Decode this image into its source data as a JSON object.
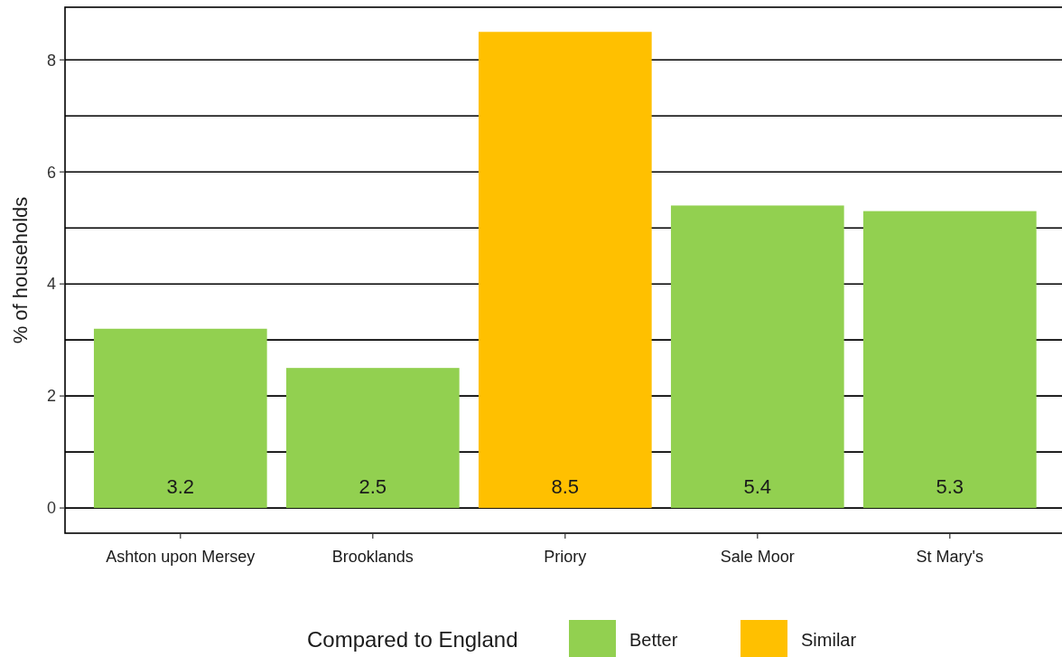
{
  "chart_data": {
    "type": "bar",
    "ylabel": "% of households",
    "categories": [
      "Ashton upon Mersey",
      "Brooklands",
      "Priory",
      "Sale Moor",
      "St Mary's"
    ],
    "series": [
      {
        "name": "Better",
        "color": "#92d050",
        "values": [
          3.2,
          2.5,
          null,
          5.4,
          5.3
        ]
      },
      {
        "name": "Similar",
        "color": "#ffc000",
        "values": [
          null,
          null,
          8.5,
          null,
          null
        ]
      }
    ],
    "stacked": true,
    "data_labels": true,
    "legend": "bottom",
    "legend_title": "Compared to England",
    "grid": "y",
    "ylim": [
      -0.45,
      8.94
    ],
    "yticks": [
      0,
      {
        "value": 1,
        "label": null
      },
      2,
      {
        "value": 3,
        "label": null
      },
      4,
      {
        "value": 5,
        "label": null
      },
      6,
      {
        "value": 7,
        "label": null
      },
      8
    ]
  }
}
